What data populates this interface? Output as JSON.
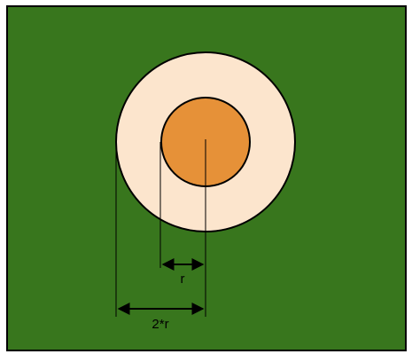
{
  "colors": {
    "background": "#38761d",
    "outer_circle": "#fce5cd",
    "inner_circle": "#e69138",
    "stroke": "#000000"
  },
  "labels": {
    "inner_radius": "r",
    "outer_radius": "2*r"
  }
}
